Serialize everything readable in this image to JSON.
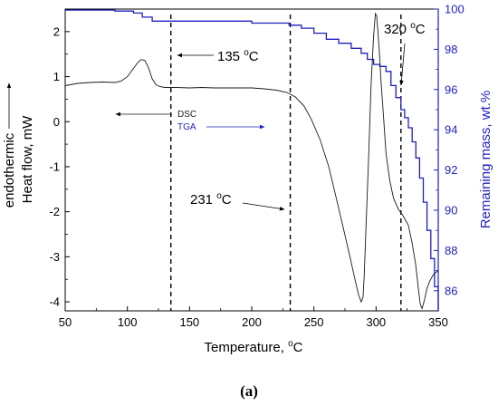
{
  "figure": {
    "panel_label": "(a)"
  },
  "chart_data": {
    "type": "line",
    "xlabel": "Temperature, ",
    "xlabel_unit": "C",
    "ylabel_left_line1": "endothermic",
    "ylabel_left_line2": "Heat flow, mW",
    "ylabel_right": "Remaining mass, wt.%",
    "xlim": [
      50,
      350
    ],
    "ylim_left": [
      -4.2,
      2.5
    ],
    "ylim_right": [
      85,
      100
    ],
    "x_ticks": [
      50,
      100,
      150,
      200,
      250,
      300,
      350
    ],
    "y_ticks_left": [
      2,
      1,
      0,
      -1,
      -2,
      -3,
      -4
    ],
    "y_ticks_right": [
      100,
      98,
      96,
      94,
      92,
      90,
      88,
      86
    ],
    "colors": {
      "dsc": "#1a1a1a",
      "tga": "#1f1fbf",
      "axis_right": "#1f1fbf"
    },
    "series": [
      {
        "name": "DSC",
        "axis": "left",
        "x": [
          50,
          60,
          70,
          80,
          90,
          95,
          100,
          104,
          108,
          111,
          114,
          117,
          120,
          123,
          126,
          130,
          135,
          140,
          150,
          160,
          170,
          180,
          190,
          200,
          210,
          220,
          228,
          235,
          242,
          248,
          255,
          262,
          268,
          274,
          279,
          283,
          286,
          288,
          289.5,
          290.5,
          292,
          294,
          296,
          298,
          299.5,
          300.5,
          301.5,
          302.5,
          304,
          306,
          308,
          311,
          314,
          318,
          322,
          326,
          329,
          332,
          334,
          335.5,
          337,
          339,
          341,
          343,
          346,
          350
        ],
        "y": [
          0.8,
          0.85,
          0.87,
          0.88,
          0.87,
          0.9,
          1.0,
          1.15,
          1.3,
          1.38,
          1.36,
          1.2,
          0.95,
          0.82,
          0.78,
          0.76,
          0.76,
          0.76,
          0.75,
          0.76,
          0.75,
          0.75,
          0.75,
          0.75,
          0.73,
          0.7,
          0.65,
          0.55,
          0.35,
          0.05,
          -0.4,
          -1.0,
          -1.7,
          -2.4,
          -3.0,
          -3.5,
          -3.85,
          -4.0,
          -3.9,
          -3.4,
          -2.3,
          -0.8,
          0.8,
          1.9,
          2.4,
          2.35,
          2.0,
          1.6,
          0.9,
          0.1,
          -0.7,
          -1.3,
          -1.7,
          -1.95,
          -2.1,
          -2.3,
          -2.7,
          -3.2,
          -3.7,
          -4.05,
          -4.15,
          -3.95,
          -3.7,
          -3.55,
          -3.4,
          -3.3
        ]
      },
      {
        "name": "TGA",
        "axis": "right",
        "x": [
          50,
          90,
          105,
          112,
          120,
          200,
          230,
          240,
          250,
          260,
          270,
          280,
          288,
          293,
          298,
          303,
          308,
          312,
          316,
          320,
          323,
          326,
          329,
          332,
          335,
          338,
          341,
          344,
          347,
          350
        ],
        "y": [
          99.95,
          99.9,
          99.8,
          99.6,
          99.4,
          99.3,
          99.2,
          99.05,
          98.8,
          98.5,
          98.3,
          98.05,
          97.8,
          97.5,
          97.25,
          97.15,
          96.9,
          96.2,
          95.6,
          95.0,
          94.6,
          94.1,
          93.4,
          92.6,
          91.6,
          90.4,
          89.0,
          87.6,
          86.2,
          85.0
        ]
      }
    ],
    "markers": [
      {
        "label_prefix": "135 ",
        "label_suffix": "C",
        "x": 135
      },
      {
        "label_prefix": "231 ",
        "label_suffix": "C",
        "x": 231
      },
      {
        "label_prefix": "320 ",
        "label_suffix": "C",
        "x": 320
      }
    ],
    "legend": {
      "placement": "middle-left",
      "entries": [
        {
          "name": "DSC",
          "color": "#1a1a1a",
          "arrow": "left"
        },
        {
          "name": "TGA",
          "color": "#1f1fbf",
          "arrow": "right"
        }
      ]
    },
    "degree_symbol": "o"
  }
}
